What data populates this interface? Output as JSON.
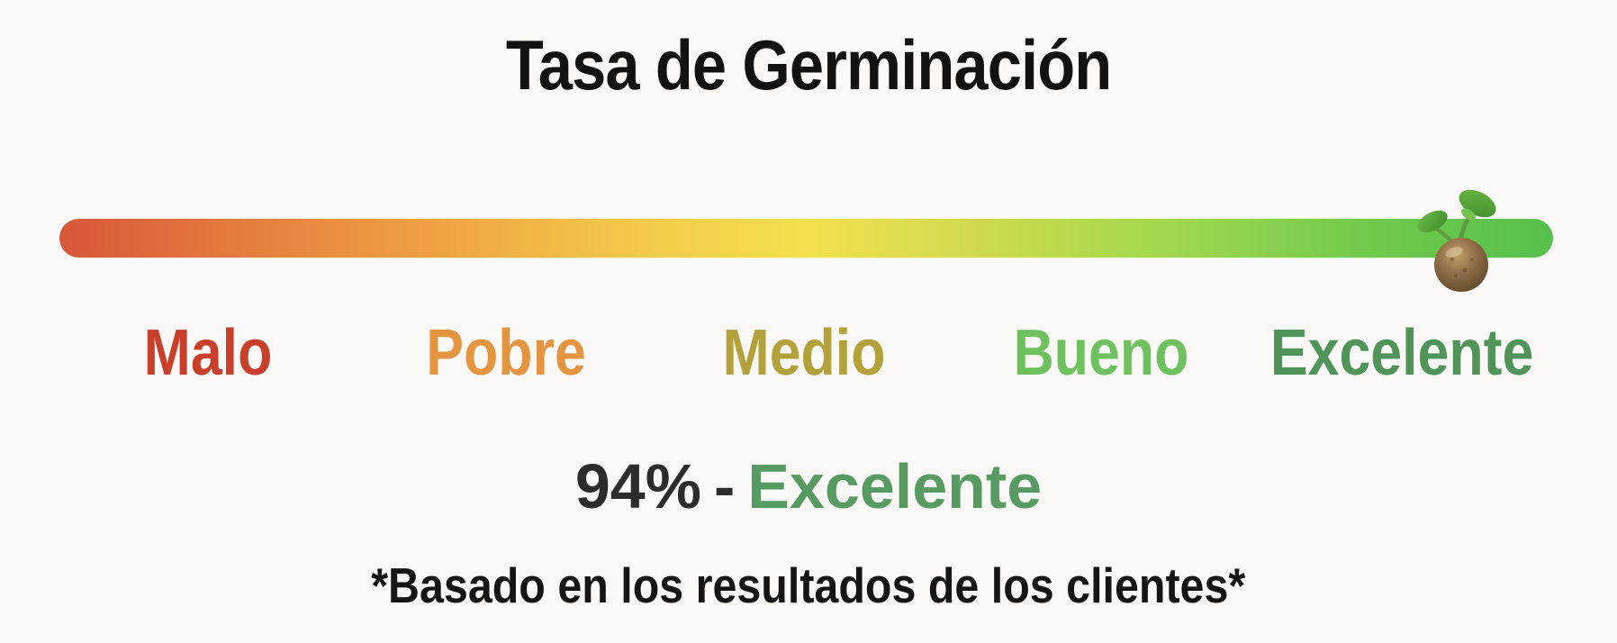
{
  "chart_data": {
    "type": "linear-gauge",
    "title": "Tasa de Germinación",
    "categories": [
      {
        "label": "Malo",
        "color": "#c8402b"
      },
      {
        "label": "Pobre",
        "color": "#e59440"
      },
      {
        "label": "Medio",
        "color": "#b3a23c"
      },
      {
        "label": "Bueno",
        "color": "#6fc05f"
      },
      {
        "label": "Excelente",
        "color": "#519459"
      }
    ],
    "range": [
      0,
      100
    ],
    "value": 94,
    "value_text": "94%",
    "separator": "-",
    "value_category": "Excelente",
    "value_text_color": "#2e2c2a",
    "value_category_color": "#579a62",
    "gradient_stops": [
      "#d6573a 0%",
      "#e3763c 10%",
      "#efa243 25%",
      "#f3c84a 38%",
      "#f4e04e 50%",
      "#cdda4e 62%",
      "#9ed74e 75%",
      "#73ca4c 87%",
      "#56c04c 100%"
    ],
    "marker_icon": "sprouting-seed-icon",
    "marker_position_percent": 94,
    "footnote": "*Basado en los resultados de los clientes*",
    "background_color": "#faf9f7"
  }
}
